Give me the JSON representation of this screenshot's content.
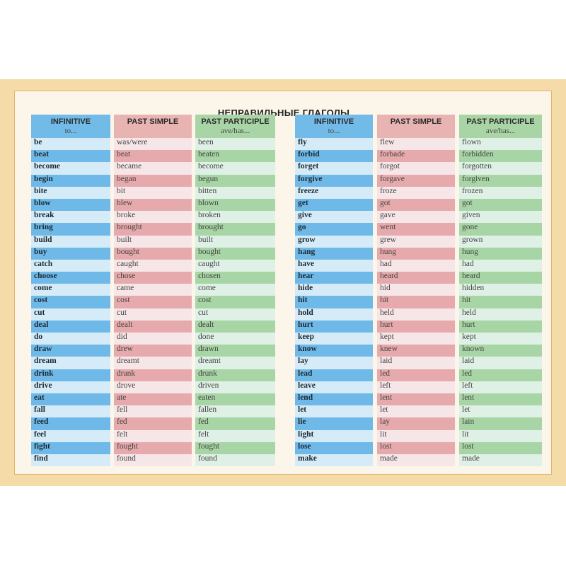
{
  "title": "НЕПРАВИЛЬНЫЕ ГЛАГОЛЫ",
  "headers": {
    "infinitive": "INFINITIVE",
    "infinitive_sub": "to...",
    "past_simple": "PAST SIMPLE",
    "past_participle": "PAST PARTICIPLE",
    "past_participle_sub": "ave/has..."
  },
  "colors": {
    "infinitive": "#72bbe8",
    "past_simple": "#e8b4b2",
    "past_participle": "#a9d5a6",
    "frame": "#f4dba7"
  },
  "left_table": [
    [
      "be",
      "was/were",
      "been"
    ],
    [
      "beat",
      "beat",
      "beaten"
    ],
    [
      "become",
      "became",
      "become"
    ],
    [
      "begin",
      "began",
      "begun"
    ],
    [
      "bite",
      "bit",
      "bitten"
    ],
    [
      "blow",
      "blew",
      "blown"
    ],
    [
      "break",
      "broke",
      "broken"
    ],
    [
      "bring",
      "brought",
      "brought"
    ],
    [
      "build",
      "built",
      "built"
    ],
    [
      "buy",
      "bought",
      "bought"
    ],
    [
      "catch",
      "caught",
      "caught"
    ],
    [
      "choose",
      "chose",
      "chosen"
    ],
    [
      "come",
      "came",
      "come"
    ],
    [
      "cost",
      "cost",
      "cost"
    ],
    [
      "cut",
      "cut",
      "cut"
    ],
    [
      "deal",
      "dealt",
      "dealt"
    ],
    [
      "do",
      "did",
      "done"
    ],
    [
      "draw",
      "drew",
      "drawn"
    ],
    [
      "dream",
      "dreamt",
      "dreamt"
    ],
    [
      "drink",
      "drank",
      "drunk"
    ],
    [
      "drive",
      "drove",
      "driven"
    ],
    [
      "eat",
      "ate",
      "eaten"
    ],
    [
      "fall",
      "fell",
      "fallen"
    ],
    [
      "feed",
      "fed",
      "fed"
    ],
    [
      "feel",
      "felt",
      "felt"
    ],
    [
      "fight",
      "fought",
      "fought"
    ],
    [
      "find",
      "found",
      "found"
    ]
  ],
  "right_table": [
    [
      "fly",
      "flew",
      "flown"
    ],
    [
      "forbid",
      "forbade",
      "forbidden"
    ],
    [
      "forget",
      "forgot",
      "forgotten"
    ],
    [
      "forgive",
      "forgave",
      "forgiven"
    ],
    [
      "freeze",
      "froze",
      "frozen"
    ],
    [
      "get",
      "got",
      "got"
    ],
    [
      "give",
      "gave",
      "given"
    ],
    [
      "go",
      "went",
      "gone"
    ],
    [
      "grow",
      "grew",
      "grown"
    ],
    [
      "hang",
      "hung",
      "hung"
    ],
    [
      "have",
      "had",
      "had"
    ],
    [
      "hear",
      "heard",
      "heard"
    ],
    [
      "hide",
      "hid",
      "hidden"
    ],
    [
      "hit",
      "hit",
      "hit"
    ],
    [
      "hold",
      "held",
      "held"
    ],
    [
      "hurt",
      "hurt",
      "hurt"
    ],
    [
      "keep",
      "kept",
      "kept"
    ],
    [
      "know",
      "knew",
      "known"
    ],
    [
      "lay",
      "laid",
      "laid"
    ],
    [
      "lead",
      "led",
      "led"
    ],
    [
      "leave",
      "left",
      "left"
    ],
    [
      "lend",
      "lent",
      "lent"
    ],
    [
      "let",
      "let",
      "let"
    ],
    [
      "lie",
      "lay",
      "lain"
    ],
    [
      "light",
      "lit",
      "lit"
    ],
    [
      "lose",
      "lost",
      "lost"
    ],
    [
      "make",
      "made",
      "made"
    ]
  ]
}
